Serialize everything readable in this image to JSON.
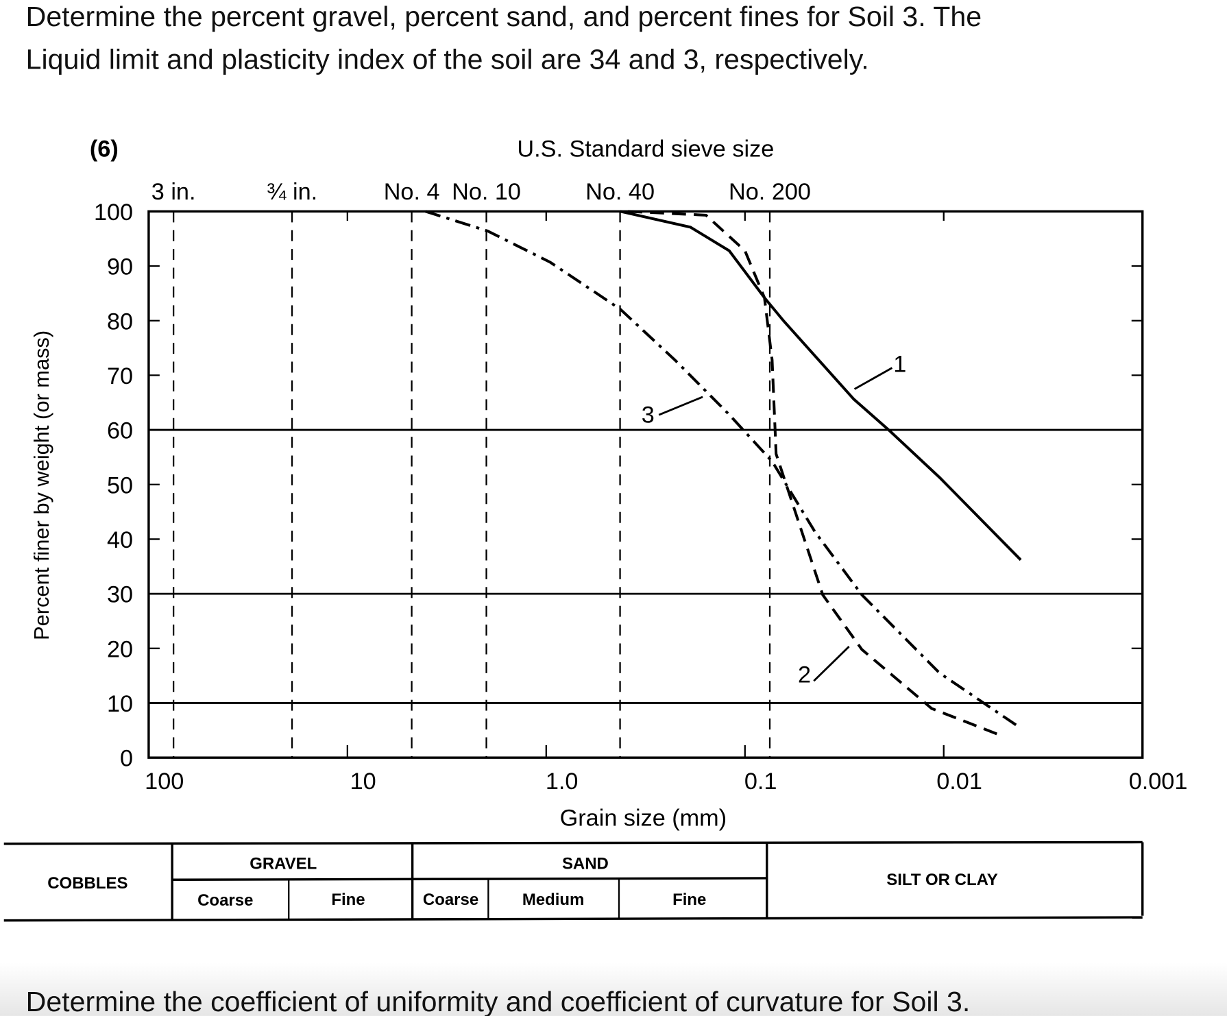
{
  "question": "Determine the percent gravel, percent sand, and percent fines for Soil 3.  The Liquid limit and plasticity index of the soil are 34 and 3, respectively.",
  "question_lines": [
    "Determine the percent gravel, percent sand, and percent fines for Soil 3.  The",
    "Liquid limit and plasticity index of the soil are 34 and 3, respectively."
  ],
  "question2": "Determine the coefficient of uniformity and coefficient of curvature for Soil 3.",
  "chart_data": {
    "type": "line",
    "figure_label": "(6)",
    "title": "U.S. Standard sieve size",
    "x_label": "Grain size (mm)",
    "y_label": "Percent finer by weight (or mass)",
    "x_log": true,
    "xlim": [
      100,
      0.001
    ],
    "xticks": [
      100,
      10,
      {
        "value": 1,
        "label": "1.0"
      },
      0.1,
      0.01,
      0.001
    ],
    "ylim": [
      0,
      100
    ],
    "yticks": [
      0,
      10,
      20,
      30,
      40,
      50,
      60,
      70,
      80,
      90,
      100
    ],
    "grid_lines": [
      10,
      30,
      60
    ],
    "sieves": {
      "names": [
        "3 in.",
        "¾ in.",
        "No. 4",
        "No. 10",
        "No. 40",
        "No. 200"
      ],
      "sizes": [
        75,
        19,
        4.75,
        2,
        0.425,
        0.075
      ]
    },
    "series": [
      {
        "name": "1",
        "color": "#000000",
        "dash": "none",
        "x": [
          0.424,
          0.188,
          0.12,
          0.0798,
          0.0637,
          0.0283,
          0.0188,
          0.0105,
          0.0041
        ],
        "values": [
          100,
          97.1,
          92.8,
          84.2,
          79.9,
          65.6,
          59.9,
          51.3,
          36.2
        ]
      },
      {
        "name": "2",
        "color": "#000000",
        "dash": "18 10",
        "x": [
          0.387,
          0.157,
          0.1,
          0.0798,
          0.073,
          0.0697,
          0.0637,
          0.0406,
          0.0258,
          0.0115,
          0.0051
        ],
        "values": [
          100,
          99.3,
          92.8,
          84.2,
          72.8,
          55.6,
          51.3,
          29.8,
          19.8,
          9.0,
          4.0
        ]
      },
      {
        "name": "3",
        "color": "#000000",
        "dash": "20 8 4 8",
        "x": [
          4.05,
          1.97,
          0.956,
          0.424,
          0.225,
          0.12,
          0.0729,
          0.0444,
          0.0258,
          0.0105,
          0.0041
        ],
        "values": [
          100,
          96.4,
          90.7,
          82.1,
          72.8,
          62.8,
          54.2,
          41.3,
          29.8,
          15.5,
          5.4
        ]
      }
    ],
    "classification": {
      "cobbles": "COBBLES",
      "gravel": "GRAVEL",
      "gravel_coarse": "Coarse",
      "gravel_fine": "Fine",
      "sand": "SAND",
      "sand_coarse": "Coarse",
      "sand_medium": "Medium",
      "sand_fine": "Fine",
      "fines": "SILT OR CLAY"
    }
  }
}
